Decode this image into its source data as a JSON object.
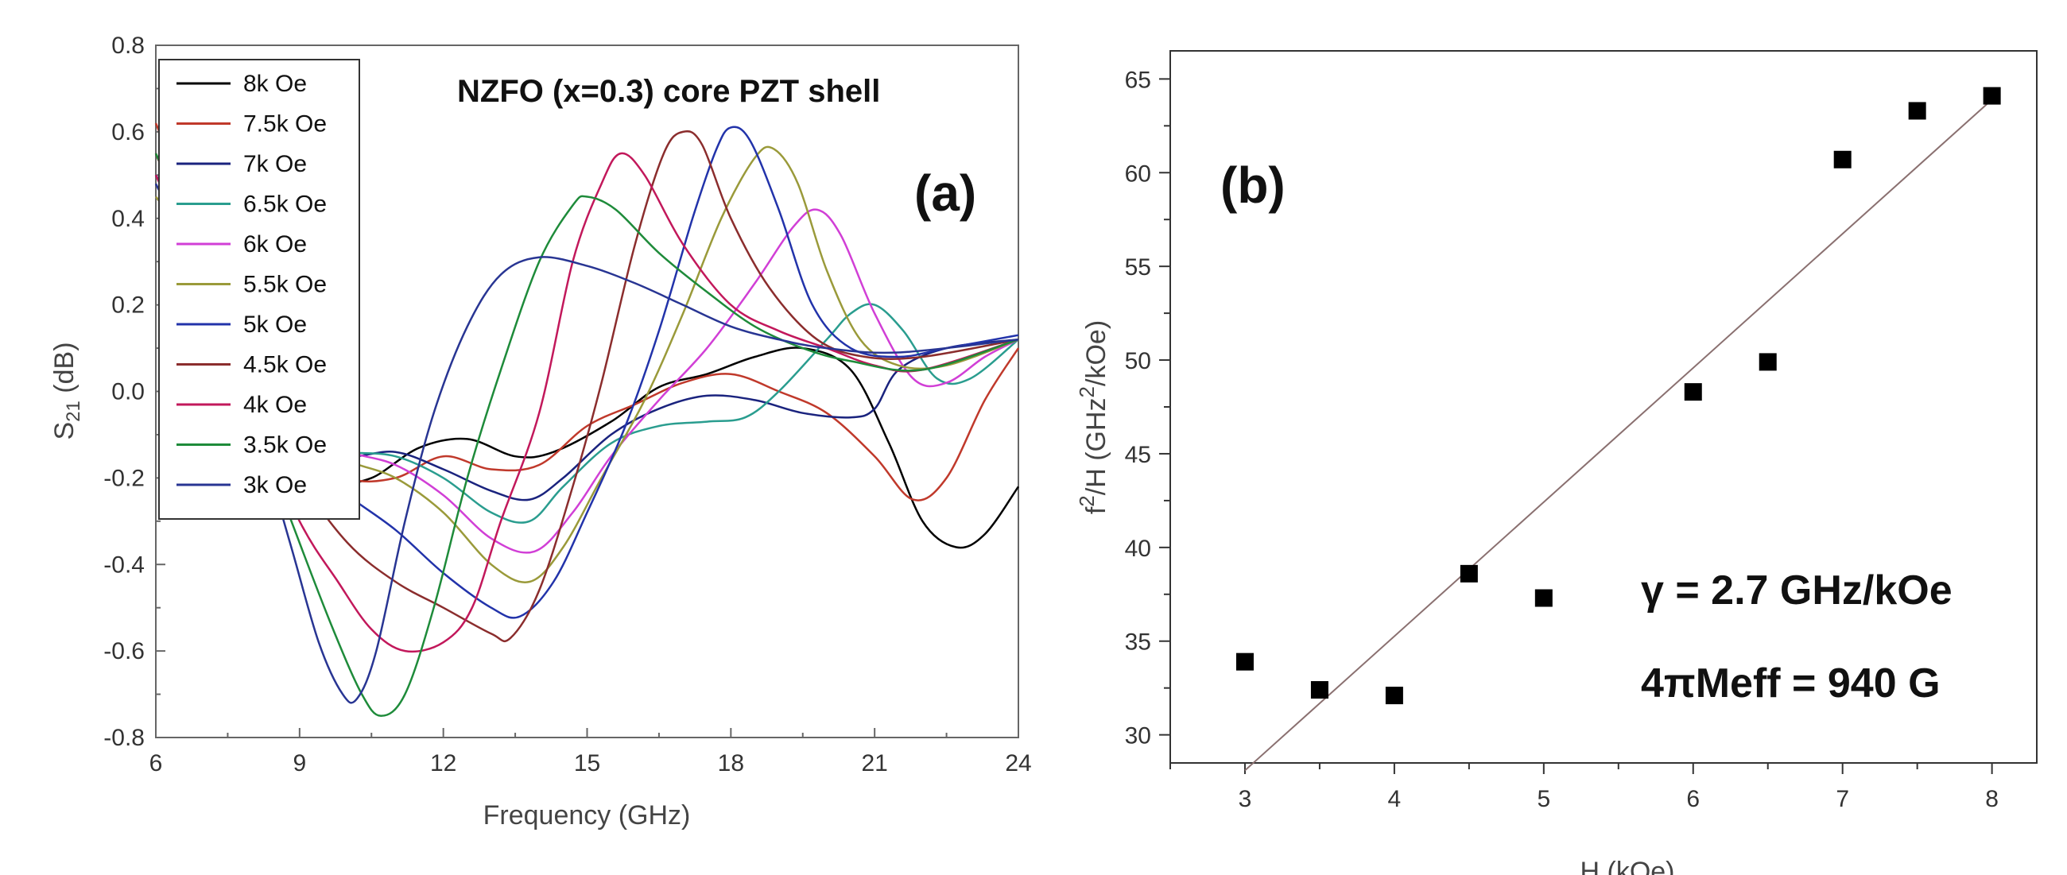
{
  "chart_data": [
    {
      "id": "a",
      "type": "line",
      "panel_label": "(a)",
      "title": "NZFO (x=0.3) core PZT shell",
      "xlabel": "Frequency (GHz)",
      "ylabel_main": "S",
      "ylabel_sub": "21",
      "ylabel_rest": " (dB)",
      "xlim": [
        6,
        24
      ],
      "ylim": [
        -0.8,
        0.8
      ],
      "xticks": [
        6,
        9,
        12,
        15,
        18,
        21,
        24
      ],
      "xtick_labels": [
        "6",
        "9",
        "12",
        "15",
        "18",
        "21",
        "24"
      ],
      "yticks": [
        -0.8,
        -0.6,
        -0.4,
        -0.2,
        0.0,
        0.2,
        0.4,
        0.6,
        0.8
      ],
      "ytick_labels": [
        "-0.8",
        "-0.6",
        "-0.4",
        "-0.2",
        "0.0",
        "0.2",
        "0.4",
        "0.6",
        "0.8"
      ],
      "legend_position": "top-left",
      "series": [
        {
          "name": "8k Oe",
          "color": "#000000",
          "points": [
            [
              6,
              0.55
            ],
            [
              7,
              0.3
            ],
            [
              8,
              0.05
            ],
            [
              9,
              -0.1
            ],
            [
              9.8,
              -0.2
            ],
            [
              10.5,
              -0.2
            ],
            [
              11.5,
              -0.13
            ],
            [
              12.5,
              -0.11
            ],
            [
              13.5,
              -0.15
            ],
            [
              14.3,
              -0.14
            ],
            [
              15.5,
              -0.07
            ],
            [
              16.5,
              0.01
            ],
            [
              17.5,
              0.04
            ],
            [
              18.5,
              0.08
            ],
            [
              19.5,
              0.1
            ],
            [
              20.5,
              0.05
            ],
            [
              21.3,
              -0.12
            ],
            [
              22,
              -0.3
            ],
            [
              22.7,
              -0.36
            ],
            [
              23.3,
              -0.33
            ],
            [
              24,
              -0.22
            ]
          ]
        },
        {
          "name": "7.5k Oe",
          "color": "#c0392b",
          "points": [
            [
              6,
              0.62
            ],
            [
              7,
              0.35
            ],
            [
              8,
              0.05
            ],
            [
              9,
              -0.12
            ],
            [
              10,
              -0.2
            ],
            [
              11,
              -0.2
            ],
            [
              12,
              -0.15
            ],
            [
              13,
              -0.18
            ],
            [
              14,
              -0.17
            ],
            [
              15,
              -0.08
            ],
            [
              16,
              -0.03
            ],
            [
              17,
              0.02
            ],
            [
              18,
              0.04
            ],
            [
              19,
              0.0
            ],
            [
              20,
              -0.05
            ],
            [
              21,
              -0.15
            ],
            [
              21.8,
              -0.25
            ],
            [
              22.5,
              -0.2
            ],
            [
              23.3,
              -0.02
            ],
            [
              24,
              0.1
            ]
          ]
        },
        {
          "name": "7k Oe",
          "color": "#1a237e",
          "points": [
            [
              6,
              0.5
            ],
            [
              7,
              0.3
            ],
            [
              8,
              0.05
            ],
            [
              9,
              -0.12
            ],
            [
              10,
              -0.15
            ],
            [
              11,
              -0.14
            ],
            [
              12,
              -0.18
            ],
            [
              13,
              -0.23
            ],
            [
              13.8,
              -0.25
            ],
            [
              14.5,
              -0.2
            ],
            [
              15.5,
              -0.1
            ],
            [
              16.5,
              -0.04
            ],
            [
              17.5,
              -0.01
            ],
            [
              18.5,
              -0.02
            ],
            [
              19.5,
              -0.05
            ],
            [
              20.5,
              -0.06
            ],
            [
              21,
              -0.04
            ],
            [
              21.5,
              0.05
            ],
            [
              22.5,
              0.1
            ],
            [
              24,
              0.12
            ]
          ]
        },
        {
          "name": "6.5k Oe",
          "color": "#2a9d8f",
          "points": [
            [
              6,
              0.45
            ],
            [
              7,
              0.3
            ],
            [
              8,
              0.05
            ],
            [
              9,
              -0.12
            ],
            [
              10,
              -0.14
            ],
            [
              11,
              -0.15
            ],
            [
              12,
              -0.2
            ],
            [
              13,
              -0.28
            ],
            [
              13.8,
              -0.3
            ],
            [
              14.5,
              -0.22
            ],
            [
              15.5,
              -0.12
            ],
            [
              16.5,
              -0.08
            ],
            [
              17.5,
              -0.07
            ],
            [
              18.3,
              -0.06
            ],
            [
              19,
              0.0
            ],
            [
              20,
              0.12
            ],
            [
              20.5,
              0.18
            ],
            [
              21,
              0.2
            ],
            [
              21.6,
              0.14
            ],
            [
              22.3,
              0.03
            ],
            [
              23,
              0.03
            ],
            [
              24,
              0.12
            ]
          ]
        },
        {
          "name": "6k Oe",
          "color": "#d13fd6",
          "points": [
            [
              6,
              0.45
            ],
            [
              7,
              0.3
            ],
            [
              8,
              0.05
            ],
            [
              9,
              -0.1
            ],
            [
              10,
              -0.14
            ],
            [
              11,
              -0.17
            ],
            [
              12,
              -0.24
            ],
            [
              13,
              -0.34
            ],
            [
              13.9,
              -0.37
            ],
            [
              14.7,
              -0.28
            ],
            [
              15.5,
              -0.15
            ],
            [
              16.5,
              -0.02
            ],
            [
              17.5,
              0.1
            ],
            [
              18.5,
              0.25
            ],
            [
              19.3,
              0.38
            ],
            [
              19.8,
              0.42
            ],
            [
              20.3,
              0.36
            ],
            [
              21,
              0.18
            ],
            [
              21.8,
              0.03
            ],
            [
              22.5,
              0.02
            ],
            [
              23.3,
              0.08
            ],
            [
              24,
              0.12
            ]
          ]
        },
        {
          "name": "5.5k Oe",
          "color": "#9a9a3a",
          "points": [
            [
              6,
              0.45
            ],
            [
              7,
              0.3
            ],
            [
              8,
              0.05
            ],
            [
              9,
              -0.1
            ],
            [
              10,
              -0.16
            ],
            [
              11,
              -0.2
            ],
            [
              12,
              -0.28
            ],
            [
              13,
              -0.4
            ],
            [
              13.8,
              -0.44
            ],
            [
              14.5,
              -0.36
            ],
            [
              15.3,
              -0.2
            ],
            [
              16.2,
              -0.02
            ],
            [
              17,
              0.18
            ],
            [
              17.8,
              0.4
            ],
            [
              18.5,
              0.54
            ],
            [
              18.9,
              0.56
            ],
            [
              19.4,
              0.48
            ],
            [
              20,
              0.28
            ],
            [
              20.7,
              0.12
            ],
            [
              21.5,
              0.06
            ],
            [
              22.5,
              0.06
            ],
            [
              24,
              0.12
            ]
          ]
        },
        {
          "name": "5k Oe",
          "color": "#2233aa",
          "points": [
            [
              6,
              0.5
            ],
            [
              7,
              0.3
            ],
            [
              8,
              0.05
            ],
            [
              9,
              -0.15
            ],
            [
              10,
              -0.24
            ],
            [
              11,
              -0.32
            ],
            [
              12,
              -0.42
            ],
            [
              13,
              -0.5
            ],
            [
              13.6,
              -0.52
            ],
            [
              14.3,
              -0.44
            ],
            [
              15,
              -0.28
            ],
            [
              15.8,
              -0.08
            ],
            [
              16.5,
              0.14
            ],
            [
              17.2,
              0.4
            ],
            [
              17.7,
              0.56
            ],
            [
              18,
              0.61
            ],
            [
              18.4,
              0.58
            ],
            [
              19,
              0.42
            ],
            [
              19.7,
              0.2
            ],
            [
              20.5,
              0.1
            ],
            [
              21.5,
              0.08
            ],
            [
              22.5,
              0.1
            ],
            [
              24,
              0.13
            ]
          ]
        },
        {
          "name": "4.5k Oe",
          "color": "#8b2d2d",
          "points": [
            [
              6,
              0.55
            ],
            [
              7,
              0.28
            ],
            [
              8,
              0.0
            ],
            [
              9,
              -0.2
            ],
            [
              10,
              -0.35
            ],
            [
              11,
              -0.44
            ],
            [
              12,
              -0.5
            ],
            [
              13,
              -0.56
            ],
            [
              13.4,
              -0.57
            ],
            [
              14,
              -0.46
            ],
            [
              14.7,
              -0.22
            ],
            [
              15.3,
              0.02
            ],
            [
              16,
              0.34
            ],
            [
              16.6,
              0.55
            ],
            [
              17,
              0.6
            ],
            [
              17.4,
              0.57
            ],
            [
              18,
              0.4
            ],
            [
              18.8,
              0.24
            ],
            [
              19.8,
              0.12
            ],
            [
              20.8,
              0.08
            ],
            [
              22,
              0.08
            ],
            [
              24,
              0.12
            ]
          ]
        },
        {
          "name": "4k Oe",
          "color": "#c2185b",
          "points": [
            [
              6,
              0.5
            ],
            [
              7,
              0.25
            ],
            [
              8,
              -0.05
            ],
            [
              9,
              -0.3
            ],
            [
              9.8,
              -0.44
            ],
            [
              10.5,
              -0.55
            ],
            [
              11.2,
              -0.6
            ],
            [
              12,
              -0.58
            ],
            [
              12.6,
              -0.5
            ],
            [
              13.2,
              -0.3
            ],
            [
              14,
              -0.05
            ],
            [
              14.7,
              0.3
            ],
            [
              15.3,
              0.48
            ],
            [
              15.7,
              0.55
            ],
            [
              16.2,
              0.5
            ],
            [
              17,
              0.34
            ],
            [
              18,
              0.2
            ],
            [
              19,
              0.14
            ],
            [
              20,
              0.1
            ],
            [
              21,
              0.06
            ],
            [
              22,
              0.05
            ],
            [
              24,
              0.12
            ]
          ]
        },
        {
          "name": "3.5k Oe",
          "color": "#1e8b3a",
          "points": [
            [
              6,
              0.55
            ],
            [
              7,
              0.3
            ],
            [
              8,
              -0.05
            ],
            [
              9,
              -0.35
            ],
            [
              9.7,
              -0.55
            ],
            [
              10.3,
              -0.7
            ],
            [
              10.7,
              -0.75
            ],
            [
              11.2,
              -0.7
            ],
            [
              11.8,
              -0.5
            ],
            [
              12.5,
              -0.2
            ],
            [
              13.2,
              0.05
            ],
            [
              14,
              0.3
            ],
            [
              14.7,
              0.43
            ],
            [
              15,
              0.45
            ],
            [
              15.6,
              0.42
            ],
            [
              16.5,
              0.32
            ],
            [
              17.5,
              0.23
            ],
            [
              18.5,
              0.15
            ],
            [
              19.5,
              0.1
            ],
            [
              20.5,
              0.07
            ],
            [
              22,
              0.05
            ],
            [
              24,
              0.12
            ]
          ]
        },
        {
          "name": "3k Oe",
          "color": "#283593",
          "points": [
            [
              6,
              0.48
            ],
            [
              7,
              0.25
            ],
            [
              8,
              -0.05
            ],
            [
              8.8,
              -0.35
            ],
            [
              9.4,
              -0.58
            ],
            [
              9.9,
              -0.7
            ],
            [
              10.2,
              -0.71
            ],
            [
              10.6,
              -0.6
            ],
            [
              11.2,
              -0.3
            ],
            [
              11.8,
              -0.05
            ],
            [
              12.5,
              0.15
            ],
            [
              13.2,
              0.27
            ],
            [
              14,
              0.31
            ],
            [
              15,
              0.29
            ],
            [
              16,
              0.25
            ],
            [
              17,
              0.2
            ],
            [
              18,
              0.15
            ],
            [
              19,
              0.12
            ],
            [
              20,
              0.1
            ],
            [
              21.5,
              0.09
            ],
            [
              24,
              0.12
            ]
          ]
        }
      ]
    },
    {
      "id": "b",
      "type": "scatter",
      "panel_label": "(b)",
      "xlabel": "H (kOe)",
      "ylabel": "f²/H (GHz²/kOe)",
      "ylabel_parts": {
        "f": "f",
        "sup1": "2",
        "slash": "/H (GHz",
        "sup2": "2",
        "tail": "/kOe)"
      },
      "xlim": [
        2.5,
        8.3
      ],
      "ylim": [
        28.5,
        66.5
      ],
      "xticks": [
        3,
        4,
        5,
        6,
        7,
        8
      ],
      "xtick_labels": [
        "3",
        "4",
        "5",
        "6",
        "7",
        "8"
      ],
      "yticks": [
        30,
        35,
        40,
        45,
        50,
        55,
        60,
        65
      ],
      "ytick_labels": [
        "30",
        "35",
        "40",
        "45",
        "50",
        "55",
        "60",
        "65"
      ],
      "x": [
        3,
        3.5,
        4,
        4.5,
        5,
        6,
        6.5,
        7,
        7.5,
        8
      ],
      "y": [
        33.9,
        32.4,
        32.1,
        38.6,
        37.3,
        48.3,
        49.9,
        60.7,
        63.3,
        64.1
      ],
      "fit_line": {
        "x": [
          3,
          8
        ],
        "y": [
          28.1,
          63.9
        ]
      },
      "annotations": [
        "γ = 2.7 GHz/kOe",
        "4πMeff = 940 G"
      ]
    }
  ]
}
